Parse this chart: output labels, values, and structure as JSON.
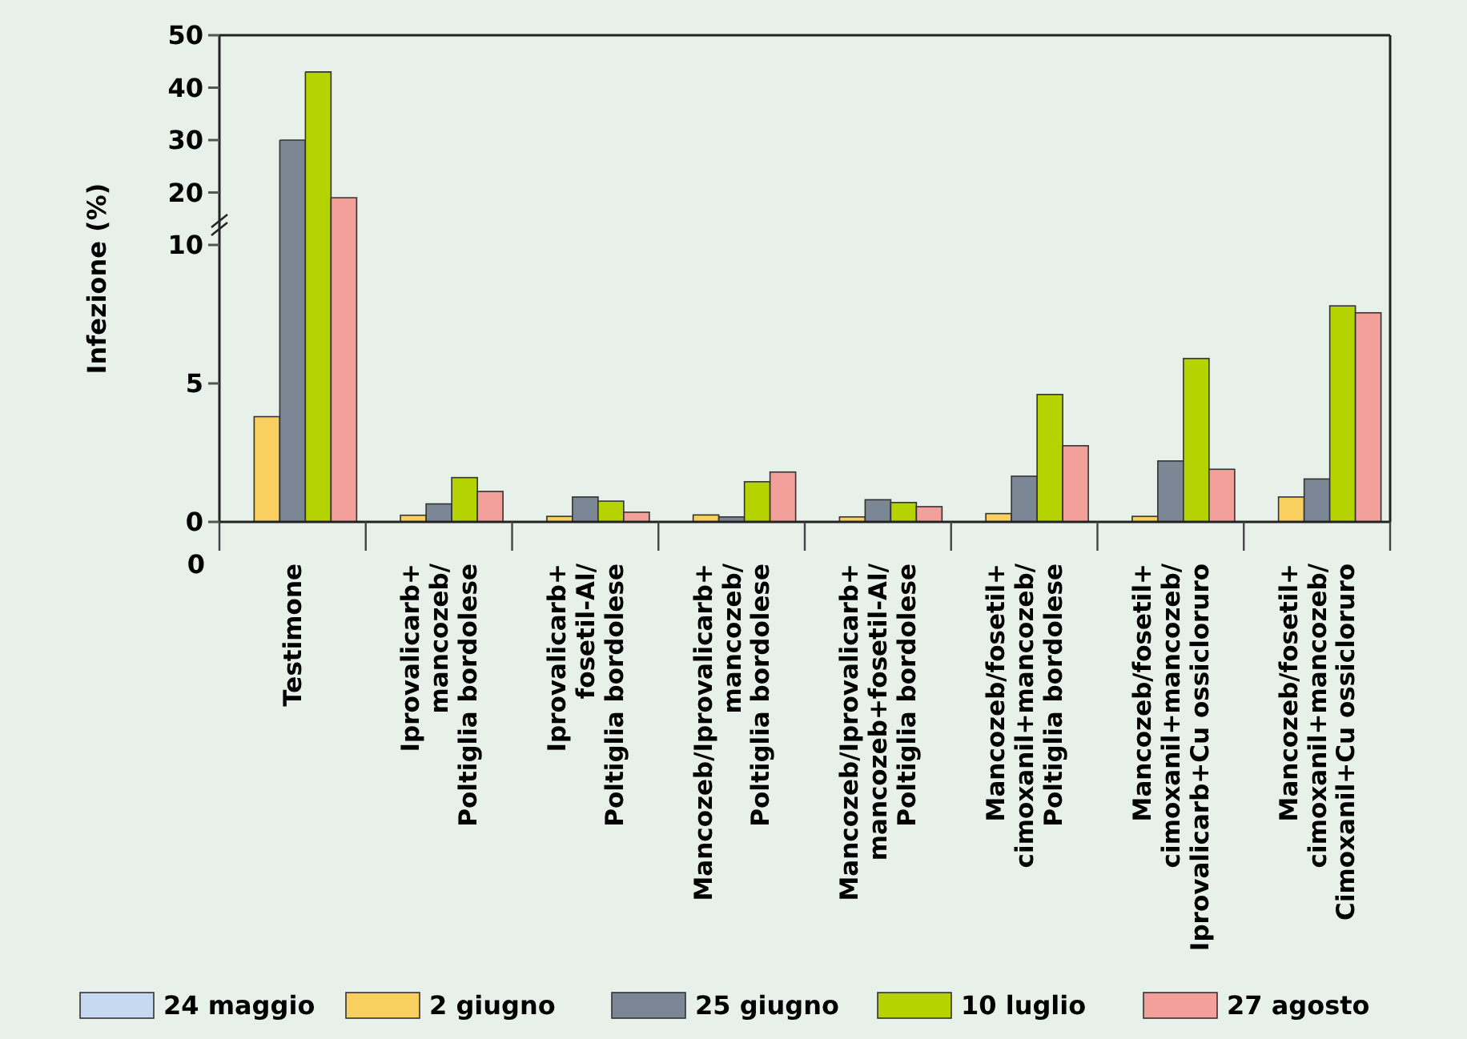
{
  "chart_data": [
    {
      "type": "bar",
      "ylabel": "Infezione (%)",
      "categories": [
        null,
        null,
        null,
        null,
        null,
        null,
        null,
        null
      ],
      "series": [
        {
          "values": [
            null,
            null,
            null,
            null,
            null,
            null,
            null,
            null
          ]
        },
        {
          "values": [
            null,
            null,
            null,
            null,
            null,
            null,
            null,
            null
          ]
        },
        {
          "color": "#7b8794",
          "values": [
            30,
            null,
            null,
            null,
            null,
            null,
            null,
            null
          ]
        },
        {
          "color": "#b5d300",
          "values": [
            43,
            null,
            null,
            null,
            null,
            null,
            null,
            null
          ]
        },
        {
          "color": "#f4a09a",
          "values": [
            19,
            null,
            null,
            null,
            null,
            null,
            null,
            null
          ]
        }
      ],
      "ylim": [
        10,
        50
      ],
      "yticks": [
        20,
        30,
        40,
        50
      ],
      "tick_labels": "y"
    },
    {
      "type": "bar",
      "categories": [
        "Testimone",
        "Iprovalicarb+\nmancozeb/\nPoltiglia bordolese",
        "Iprovalicarb+\nfosetil-Al/\nPoltiglia bordolese",
        "Mancozeb/Iprovalicarb+\nmancozeb/\nPoltiglia bordolese",
        "Mancozeb/Iprovalicarb+\nmancozeb+fosetil-Al/\nPoltiglia bordolese",
        "Mancozeb/fosetil+\ncimoxanil+mancozeb/\nPoltiglia bordolese",
        "Mancozeb/fosetil+\ncimoxanil+mancozeb/\nIprovalicarb+Cu ossicloruro",
        "Mancozeb/fosetil+\ncimoxanil+mancozeb/\nCimoxanil+Cu ossicloruro"
      ],
      "series": [
        {
          "name": "24 maggio",
          "color": "#c6d9f1",
          "values": [
            0,
            0,
            0,
            0,
            0,
            0,
            0,
            0
          ]
        },
        {
          "name": "2 giugno",
          "color": "#f9cf5f",
          "values": [
            3.8,
            0.24,
            0.2,
            0.25,
            0.18,
            0.3,
            0.2,
            0.9
          ]
        },
        {
          "name": "25 giugno",
          "color": "#7b8794",
          "values": [
            10,
            0.65,
            0.9,
            0.18,
            0.8,
            1.65,
            2.2,
            1.55
          ]
        },
        {
          "name": "10 luglio",
          "color": "#b5d300",
          "values": [
            10,
            1.6,
            0.75,
            1.45,
            0.7,
            4.6,
            5.9,
            7.8
          ]
        },
        {
          "name": "27 agosto",
          "color": "#f4a09a",
          "values": [
            10,
            1.1,
            0.35,
            1.8,
            0.55,
            2.75,
            1.9,
            7.55
          ]
        }
      ],
      "ylim": [
        0,
        10
      ],
      "yticks": [
        0,
        5,
        10
      ],
      "annotations": [
        "0"
      ],
      "legend": "bottom",
      "grid": false
    }
  ]
}
